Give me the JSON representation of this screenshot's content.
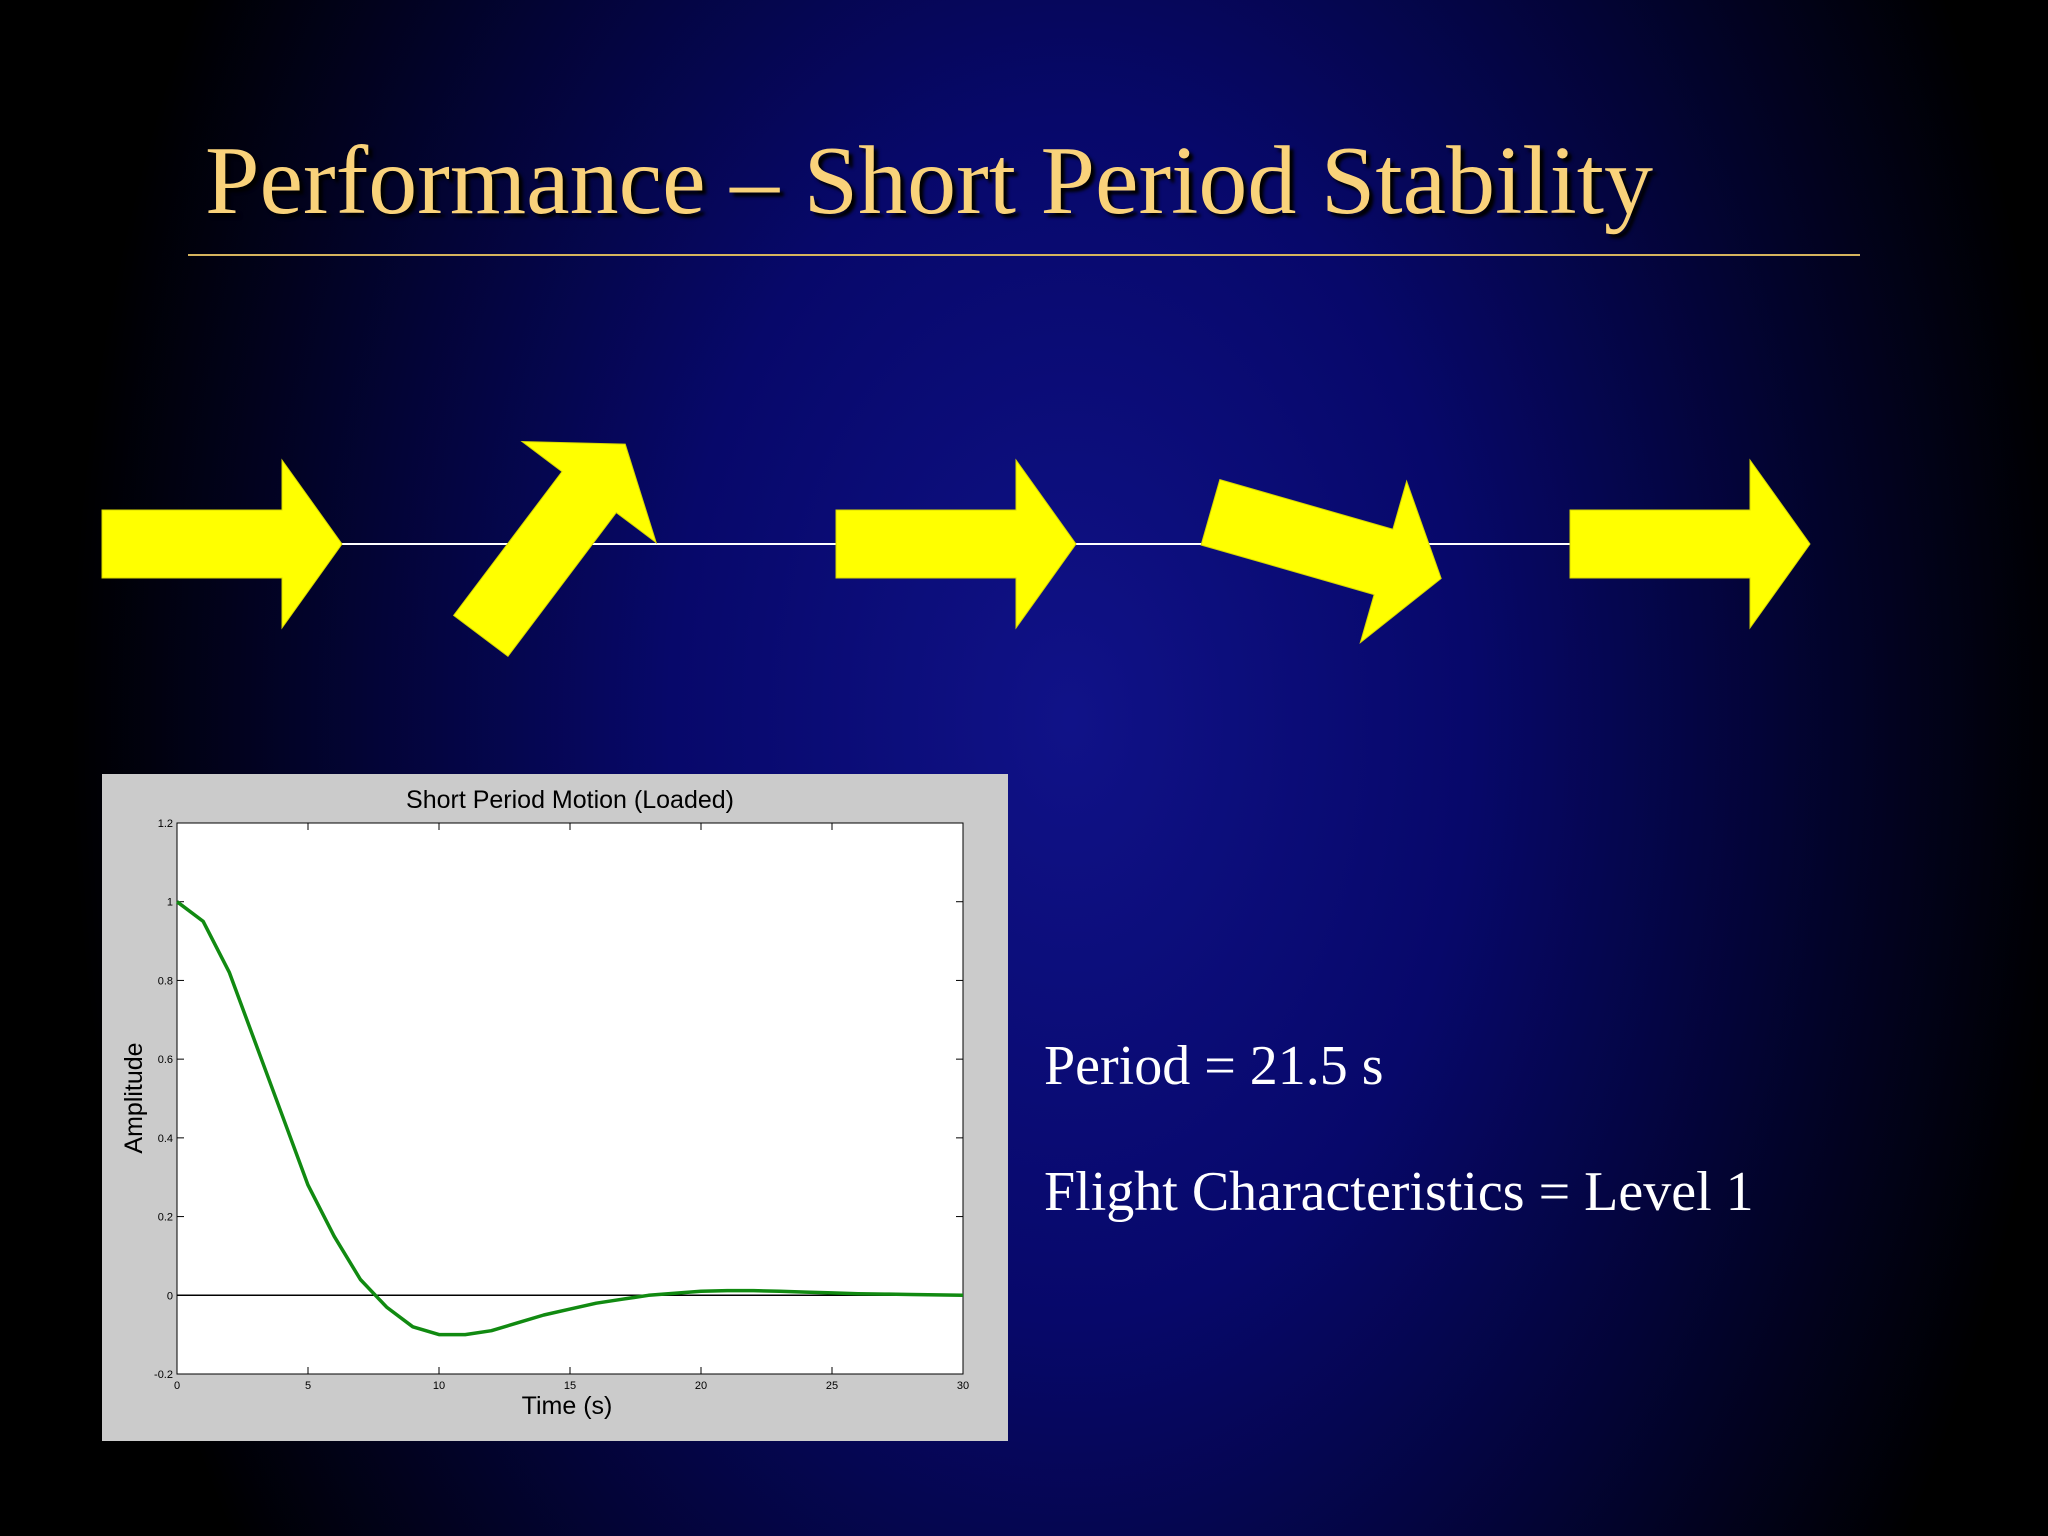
{
  "slide": {
    "title": "Performance – Short Period Stability",
    "notes": {
      "period": "Period = 21.5 s",
      "flight_characteristics": "Flight Characteristics = Level 1"
    },
    "arrow_color": "#ffff00",
    "title_color": "#f9d27a"
  },
  "chart_data": {
    "type": "line",
    "title": "Short Period Motion (Loaded)",
    "xlabel": "Time (s)",
    "ylabel": "Amplitude",
    "xlim": [
      0,
      30
    ],
    "ylim": [
      -0.2,
      1.2
    ],
    "xticks": [
      "0",
      "5",
      "10",
      "15",
      "20",
      "25",
      "30"
    ],
    "yticks": [
      "-0.2",
      "0",
      "0.2",
      "0.4",
      "0.6",
      "0.8",
      "1",
      "1.2"
    ],
    "grid": false,
    "zero_line": true,
    "series": [
      {
        "color": "#118a11",
        "x": [
          0,
          1,
          2,
          3,
          4,
          5,
          6,
          7,
          8,
          9,
          10,
          11,
          12,
          13,
          14,
          15,
          16,
          17,
          18,
          19,
          20,
          21,
          22,
          23,
          24,
          25,
          26,
          27,
          28,
          29,
          30
        ],
        "y": [
          1.0,
          0.95,
          0.82,
          0.64,
          0.46,
          0.28,
          0.15,
          0.04,
          -0.03,
          -0.08,
          -0.1,
          -0.1,
          -0.09,
          -0.07,
          -0.05,
          -0.035,
          -0.02,
          -0.01,
          0.0,
          0.005,
          0.01,
          0.012,
          0.012,
          0.01,
          0.008,
          0.006,
          0.004,
          0.003,
          0.002,
          0.001,
          0.0
        ]
      }
    ]
  }
}
